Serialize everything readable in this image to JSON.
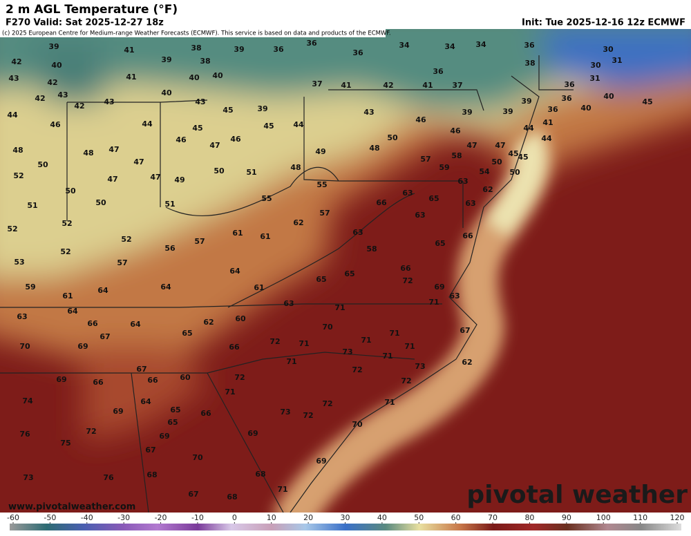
{
  "header": {
    "title": "2 m AGL Temperature (°F)",
    "valid": "F270 Valid: Sat 2025-12-27 18z",
    "init": "Init: Tue 2025-12-16 12z ECMWF",
    "credit": "(c) 2025 European Centre for Medium-range Weather Forecasts (ECMWF). This service is based on data and products of the ECMWF."
  },
  "map": {
    "labels": [
      39,
      41,
      38,
      39,
      36,
      36,
      36,
      34,
      34,
      34,
      36,
      30,
      42,
      40,
      39,
      38,
      36,
      38,
      30,
      31,
      43,
      42,
      41,
      40,
      40,
      37,
      41,
      42,
      41,
      37,
      31,
      36,
      43,
      42,
      40,
      43,
      45,
      39,
      43,
      42,
      39,
      36,
      40,
      36,
      40,
      45,
      44,
      46,
      44,
      45,
      45,
      44,
      43,
      46,
      46,
      39,
      39,
      44,
      41,
      44,
      48,
      48,
      47,
      46,
      47,
      46,
      49,
      48,
      50,
      47,
      47,
      45,
      50,
      47,
      50,
      51,
      48,
      57,
      58,
      45,
      54,
      50,
      50,
      52,
      47,
      49,
      47,
      55,
      59,
      63,
      62,
      50,
      51,
      51,
      50,
      55,
      63,
      66,
      65,
      63,
      52,
      52,
      62,
      57,
      61,
      61,
      63,
      63,
      66,
      52,
      52,
      56,
      57,
      58,
      65,
      53,
      57,
      64,
      66,
      65,
      65,
      72,
      59,
      64,
      64,
      61,
      69,
      63,
      61,
      71,
      63,
      71,
      63,
      64,
      62,
      60,
      66,
      64,
      70,
      65,
      67,
      71,
      67,
      70,
      69,
      72,
      71,
      71,
      71,
      66,
      73,
      71,
      71,
      73,
      72,
      62,
      67,
      69,
      66,
      66,
      60,
      72,
      72,
      74,
      71,
      64,
      72,
      71,
      69,
      65,
      66,
      73,
      72,
      65,
      70,
      76,
      72,
      69,
      69,
      75,
      67,
      70,
      69,
      73,
      76,
      68,
      68,
      71,
      67,
      68
    ]
  },
  "footer": {
    "url": "www.pivotalweather.com",
    "brand": "pivotal weather"
  },
  "colorbar": {
    "lim": [
      -60,
      120
    ],
    "ticks": [
      -60,
      -50,
      -40,
      -30,
      -20,
      -10,
      0,
      10,
      20,
      30,
      40,
      50,
      60,
      70,
      80,
      90,
      100,
      110,
      120
    ]
  }
}
